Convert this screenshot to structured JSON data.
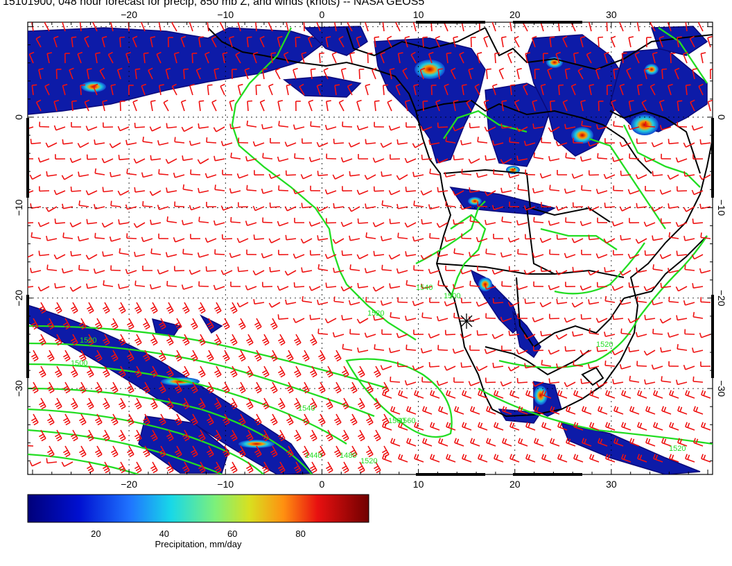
{
  "title": "15101900, 048 hour forecast for precip, 850 mb Z, and winds (knots) -- NASA GEOS5",
  "map": {
    "lon_range": [
      -30.5,
      40.5
    ],
    "lat_range": [
      -39.5,
      10.5
    ],
    "lon_ticks": [
      "-20",
      "-10",
      "0",
      "10",
      "20",
      "30"
    ],
    "lat_ticks": [
      "0",
      "-10",
      "-20",
      "-30"
    ],
    "grid": true
  },
  "layers": {
    "precip_fill": "precipitation-colormap",
    "height_contours_color": "#22dd22",
    "wind_barbs_color": "#ee1111",
    "coastline_color": "#000000"
  },
  "contour_labels": [
    "1520",
    "1500",
    "1520",
    "1540",
    "1560",
    "1540",
    "1560",
    "1500",
    "1440",
    "1480",
    "1520",
    "1520",
    "1520"
  ],
  "colorbar": {
    "label": "Precipitation, mm/day",
    "ticks": [
      "20",
      "40",
      "60",
      "80"
    ],
    "range": [
      0,
      100
    ]
  }
}
